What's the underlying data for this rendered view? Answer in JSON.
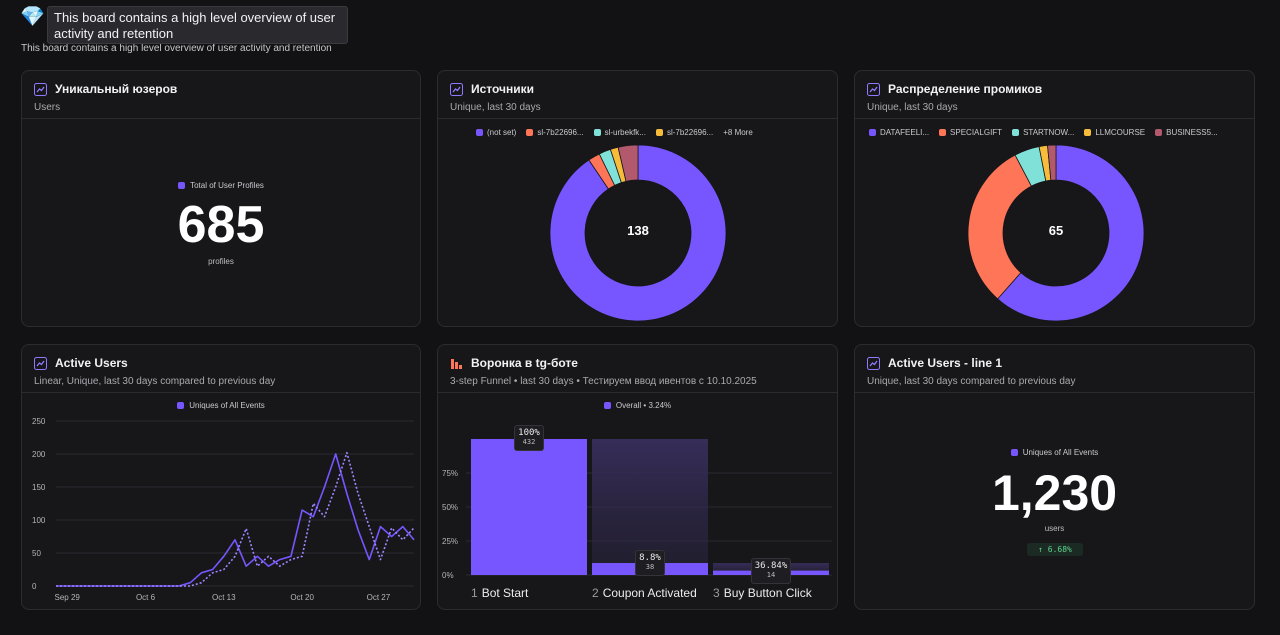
{
  "header": {
    "tooltip": "This board contains a high level overview of user activity and retention",
    "description": "This board contains a high level overview of user activity and retention"
  },
  "colors": {
    "accent": "#7856ff",
    "coral": "#ff7557",
    "teal": "#80e1d9",
    "yellow": "#f8bc3b",
    "rose": "#b2596e",
    "green": "#5fd38d"
  },
  "cards": {
    "unique_users": {
      "title": "Уникальный юзеров",
      "subtitle": "Users",
      "legend": "Total of User Profiles",
      "value": "685",
      "unit": "profiles"
    },
    "sources": {
      "title": "Источники",
      "subtitle": "Unique, last 30 days",
      "legend": [
        {
          "label": "(not set)",
          "color": "#7856ff"
        },
        {
          "label": "sl-7b22696...",
          "color": "#ff7557"
        },
        {
          "label": "sl-urbekfk...",
          "color": "#80e1d9"
        },
        {
          "label": "sl-7b22696...",
          "color": "#f8bc3b"
        }
      ],
      "more": "+8 More",
      "total": "138"
    },
    "promo": {
      "title": "Распределение промиков",
      "subtitle": "Unique, last 30 days",
      "legend": [
        {
          "label": "DATAFEELI...",
          "color": "#7856ff"
        },
        {
          "label": "SPECIALGIFT",
          "color": "#ff7557"
        },
        {
          "label": "STARTNOW...",
          "color": "#80e1d9"
        },
        {
          "label": "LLMCOURSE",
          "color": "#f8bc3b"
        },
        {
          "label": "BUSINESS5...",
          "color": "#b2596e"
        }
      ],
      "total": "65"
    },
    "active_users": {
      "title": "Active Users",
      "subtitle": "Linear, Unique, last 30 days compared to previous day",
      "legend": "Uniques of All Events"
    },
    "funnel": {
      "title": "Воронка в tg-боте",
      "subtitle": "3-step Funnel • last 30 days • Тестируем ввод ивентов с 10.10.2025",
      "legend": "Overall • 3.24%",
      "steps": [
        {
          "num": "1",
          "label": "Bot Start",
          "pct_label": "100%",
          "count": "432",
          "value": 100
        },
        {
          "num": "2",
          "label": "Coupon Activated",
          "pct_label": "8.8%",
          "count": "38",
          "value": 8.8
        },
        {
          "num": "3",
          "label": "Buy Button Click",
          "pct_label": "36.84%",
          "count": "14",
          "value": 3.24
        }
      ],
      "y_ticks": [
        "0%",
        "25%",
        "50%",
        "75%"
      ]
    },
    "active_line": {
      "title": "Active Users - line 1",
      "subtitle": "Unique, last 30 days compared to previous day",
      "legend": "Uniques of All Events",
      "value": "1,230",
      "unit": "users",
      "delta": "↑ 6.68%"
    }
  },
  "chart_data": [
    {
      "type": "pie",
      "title": "Источники",
      "labels": [
        "(not set)",
        "sl-7b22696...",
        "sl-urbekfk...",
        "sl-7b22696...",
        "other"
      ],
      "values": [
        125,
        3,
        3,
        2,
        5
      ],
      "colors": [
        "#7856ff",
        "#ff7557",
        "#80e1d9",
        "#f8bc3b",
        "#b2596e"
      ],
      "center_label": "138"
    },
    {
      "type": "pie",
      "title": "Распределение промиков",
      "labels": [
        "DATAFEELI...",
        "SPECIALGIFT",
        "STARTNOW...",
        "LLMCOURSE",
        "BUSINESS5..."
      ],
      "values": [
        40,
        20,
        3,
        1,
        1
      ],
      "colors": [
        "#7856ff",
        "#ff7557",
        "#80e1d9",
        "#f8bc3b",
        "#b2596e"
      ],
      "center_label": "65"
    },
    {
      "type": "line",
      "title": "Active Users",
      "x_ticks": [
        "Sep 29",
        "Oct 6",
        "Oct 13",
        "Oct 20",
        "Oct 27"
      ],
      "y_ticks": [
        0,
        50,
        100,
        150,
        200,
        250
      ],
      "ylim": [
        0,
        250
      ],
      "series": [
        {
          "name": "Uniques of All Events",
          "style": "solid",
          "values": [
            0,
            0,
            0,
            0,
            0,
            0,
            0,
            0,
            0,
            0,
            0,
            0,
            5,
            20,
            25,
            45,
            70,
            30,
            45,
            30,
            40,
            45,
            115,
            105,
            150,
            200,
            140,
            85,
            40,
            90,
            75,
            90,
            70
          ]
        },
        {
          "name": "compared to previous day",
          "style": "dashed",
          "values": [
            0,
            0,
            0,
            0,
            0,
            0,
            0,
            0,
            0,
            0,
            0,
            0,
            0,
            5,
            20,
            25,
            45,
            87,
            30,
            45,
            30,
            40,
            45,
            125,
            105,
            150,
            202,
            140,
            90,
            40,
            88,
            70,
            88
          ]
        }
      ]
    },
    {
      "type": "bar",
      "title": "Воронка в tg-боте",
      "categories": [
        "Bot Start",
        "Coupon Activated",
        "Buy Button Click"
      ],
      "values": [
        100,
        8.8,
        3.24
      ],
      "ylim": [
        0,
        100
      ]
    }
  ]
}
